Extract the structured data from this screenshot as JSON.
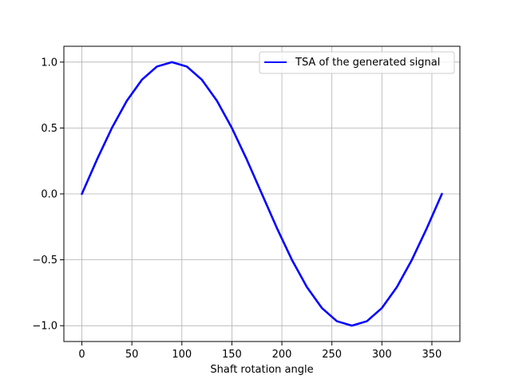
{
  "chart_data": {
    "type": "line",
    "title": "",
    "xlabel": "Shaft rotation angle",
    "ylabel": "",
    "xlim": [
      -18,
      378
    ],
    "ylim": [
      -1.12,
      1.12
    ],
    "xticks": [
      0,
      50,
      100,
      150,
      200,
      250,
      300,
      350
    ],
    "xtick_labels": [
      "0",
      "50",
      "100",
      "150",
      "200",
      "250",
      "300",
      "350"
    ],
    "yticks": [
      -1.0,
      -0.5,
      0.0,
      0.5,
      1.0
    ],
    "ytick_labels": [
      "−1.0",
      "−0.5",
      "0.0",
      "0.5",
      "1.0"
    ],
    "grid": true,
    "legend_position": "top-right",
    "series": [
      {
        "name": "TSA of the generated signal",
        "color": "#0000ff",
        "x": [
          0,
          15,
          30,
          45,
          60,
          75,
          90,
          105,
          120,
          135,
          150,
          165,
          180,
          195,
          210,
          225,
          240,
          255,
          270,
          285,
          300,
          315,
          330,
          345,
          360
        ],
        "y": [
          0.0,
          0.259,
          0.5,
          0.707,
          0.866,
          0.966,
          1.0,
          0.966,
          0.866,
          0.707,
          0.5,
          0.259,
          0.0,
          -0.259,
          -0.5,
          -0.707,
          -0.866,
          -0.966,
          -1.0,
          -0.966,
          -0.866,
          -0.707,
          -0.5,
          -0.259,
          0.0
        ]
      }
    ]
  }
}
